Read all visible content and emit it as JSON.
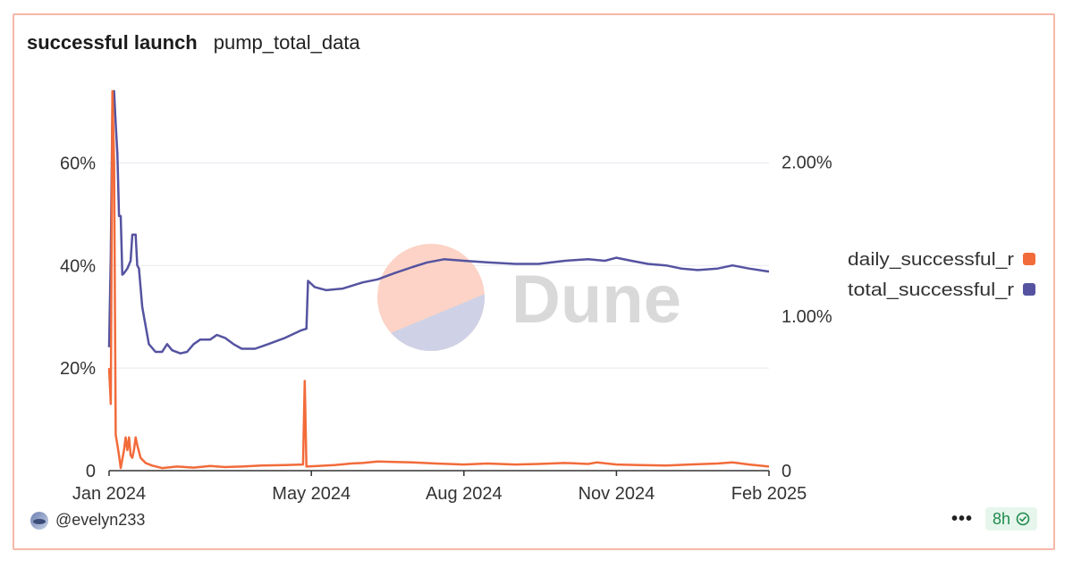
{
  "header": {
    "title": "successful launch",
    "subtitle": "pump_total_data"
  },
  "watermark": {
    "text": "Dune",
    "colors": {
      "top": "#fcd3c6",
      "bottom": "#cfd2e6",
      "text": "#d9d9d9"
    }
  },
  "footer": {
    "author": "@evelyn233",
    "more_label": "•••",
    "refresh_badge": "8h"
  },
  "colors": {
    "daily": "#f26b3a",
    "total": "#5553a0",
    "grid": "#e8e8f0"
  },
  "chart_data": {
    "type": "line",
    "xlim": [
      "2023-12-31",
      "2025-02-01"
    ],
    "x_ticks": [
      {
        "date": "2023-12-31",
        "label": "Jan 2024"
      },
      {
        "date": "2024-05-01",
        "label": "May 2024"
      },
      {
        "date": "2024-08-01",
        "label": "Aug 2024"
      },
      {
        "date": "2024-11-01",
        "label": "Nov 2024"
      },
      {
        "date": "2025-02-01",
        "label": "Feb 2025"
      }
    ],
    "y_left": {
      "ylim": [
        0,
        74
      ],
      "ticks": [
        0,
        20,
        40,
        60
      ],
      "tick_labels": [
        "0",
        "20%",
        "40%",
        "60%"
      ]
    },
    "y_right": {
      "ylim": [
        0,
        0.0246
      ],
      "ticks": [
        0,
        0.01,
        0.02
      ],
      "tick_labels": [
        "0",
        "1.00%",
        "2.00%"
      ]
    },
    "legend": {
      "position": "right"
    },
    "series": [
      {
        "name": "daily_successful_r",
        "axis": "left",
        "points": [
          [
            "2023-12-31",
            20
          ],
          [
            "2024-01-01",
            13
          ],
          [
            "2024-01-02",
            74
          ],
          [
            "2024-01-03",
            60
          ],
          [
            "2024-01-04",
            7
          ],
          [
            "2024-01-05",
            5
          ],
          [
            "2024-01-06",
            3
          ],
          [
            "2024-01-07",
            0.5
          ],
          [
            "2024-01-09",
            4
          ],
          [
            "2024-01-10",
            6.5
          ],
          [
            "2024-01-11",
            4
          ],
          [
            "2024-01-12",
            6.5
          ],
          [
            "2024-01-13",
            3
          ],
          [
            "2024-01-14",
            2.5
          ],
          [
            "2024-01-15",
            4
          ],
          [
            "2024-01-16",
            6.5
          ],
          [
            "2024-01-17",
            5
          ],
          [
            "2024-01-19",
            2.5
          ],
          [
            "2024-01-22",
            1.5
          ],
          [
            "2024-01-26",
            1
          ],
          [
            "2024-02-01",
            0.5
          ],
          [
            "2024-02-10",
            0.8
          ],
          [
            "2024-02-20",
            0.6
          ],
          [
            "2024-03-01",
            0.9
          ],
          [
            "2024-03-10",
            0.7
          ],
          [
            "2024-03-20",
            0.8
          ],
          [
            "2024-04-01",
            1.0
          ],
          [
            "2024-04-15",
            1.1
          ],
          [
            "2024-04-26",
            1.2
          ],
          [
            "2024-04-27",
            17.5
          ],
          [
            "2024-04-28",
            0.8
          ],
          [
            "2024-05-05",
            0.9
          ],
          [
            "2024-05-15",
            1.1
          ],
          [
            "2024-05-25",
            1.4
          ],
          [
            "2024-06-01",
            1.5
          ],
          [
            "2024-06-10",
            1.8
          ],
          [
            "2024-06-20",
            1.7
          ],
          [
            "2024-07-01",
            1.6
          ],
          [
            "2024-07-15",
            1.4
          ],
          [
            "2024-08-01",
            1.2
          ],
          [
            "2024-08-15",
            1.4
          ],
          [
            "2024-09-01",
            1.2
          ],
          [
            "2024-09-15",
            1.3
          ],
          [
            "2024-10-01",
            1.5
          ],
          [
            "2024-10-15",
            1.3
          ],
          [
            "2024-10-20",
            1.6
          ],
          [
            "2024-11-01",
            1.2
          ],
          [
            "2024-11-15",
            1.1
          ],
          [
            "2024-12-01",
            1.0
          ],
          [
            "2024-12-15",
            1.2
          ],
          [
            "2025-01-01",
            1.4
          ],
          [
            "2025-01-10",
            1.6
          ],
          [
            "2025-01-20",
            1.2
          ],
          [
            "2025-02-01",
            0.8
          ]
        ]
      },
      {
        "name": "total_successful_r",
        "axis": "right",
        "points": [
          [
            "2023-12-31",
            0.008
          ],
          [
            "2024-01-01",
            0.014
          ],
          [
            "2024-01-02",
            0.0235
          ],
          [
            "2024-01-03",
            0.0246
          ],
          [
            "2024-01-04",
            0.0225
          ],
          [
            "2024-01-05",
            0.0205
          ],
          [
            "2024-01-06",
            0.0165
          ],
          [
            "2024-01-07",
            0.0165
          ],
          [
            "2024-01-08",
            0.0127
          ],
          [
            "2024-01-09",
            0.0128
          ],
          [
            "2024-01-11",
            0.0131
          ],
          [
            "2024-01-13",
            0.0136
          ],
          [
            "2024-01-14",
            0.0153
          ],
          [
            "2024-01-16",
            0.0153
          ],
          [
            "2024-01-17",
            0.0133
          ],
          [
            "2024-01-18",
            0.0131
          ],
          [
            "2024-01-20",
            0.0106
          ],
          [
            "2024-01-24",
            0.0082
          ],
          [
            "2024-01-28",
            0.0077
          ],
          [
            "2024-02-01",
            0.0077
          ],
          [
            "2024-02-04",
            0.0082
          ],
          [
            "2024-02-07",
            0.0078
          ],
          [
            "2024-02-12",
            0.0076
          ],
          [
            "2024-02-16",
            0.0077
          ],
          [
            "2024-02-20",
            0.0082
          ],
          [
            "2024-02-24",
            0.0085
          ],
          [
            "2024-03-01",
            0.0085
          ],
          [
            "2024-03-05",
            0.0088
          ],
          [
            "2024-03-10",
            0.0086
          ],
          [
            "2024-03-15",
            0.0082
          ],
          [
            "2024-03-20",
            0.0079
          ],
          [
            "2024-03-28",
            0.0079
          ],
          [
            "2024-04-05",
            0.0082
          ],
          [
            "2024-04-15",
            0.0086
          ],
          [
            "2024-04-25",
            0.0091
          ],
          [
            "2024-04-28",
            0.0092
          ],
          [
            "2024-04-29",
            0.0123
          ],
          [
            "2024-05-03",
            0.0119
          ],
          [
            "2024-05-10",
            0.0117
          ],
          [
            "2024-05-20",
            0.0118
          ],
          [
            "2024-06-01",
            0.0122
          ],
          [
            "2024-06-10",
            0.0124
          ],
          [
            "2024-06-20",
            0.0128
          ],
          [
            "2024-07-01",
            0.0132
          ],
          [
            "2024-07-10",
            0.0135
          ],
          [
            "2024-07-20",
            0.0137
          ],
          [
            "2024-08-01",
            0.0136
          ],
          [
            "2024-08-15",
            0.0135
          ],
          [
            "2024-09-01",
            0.0134
          ],
          [
            "2024-09-15",
            0.0134
          ],
          [
            "2024-10-01",
            0.0136
          ],
          [
            "2024-10-15",
            0.0137
          ],
          [
            "2024-10-25",
            0.0136
          ],
          [
            "2024-11-01",
            0.0138
          ],
          [
            "2024-11-10",
            0.0136
          ],
          [
            "2024-11-20",
            0.0134
          ],
          [
            "2024-12-01",
            0.0133
          ],
          [
            "2024-12-10",
            0.0131
          ],
          [
            "2024-12-20",
            0.013
          ],
          [
            "2025-01-01",
            0.0131
          ],
          [
            "2025-01-10",
            0.0133
          ],
          [
            "2025-01-20",
            0.0131
          ],
          [
            "2025-02-01",
            0.0129
          ]
        ]
      }
    ]
  }
}
